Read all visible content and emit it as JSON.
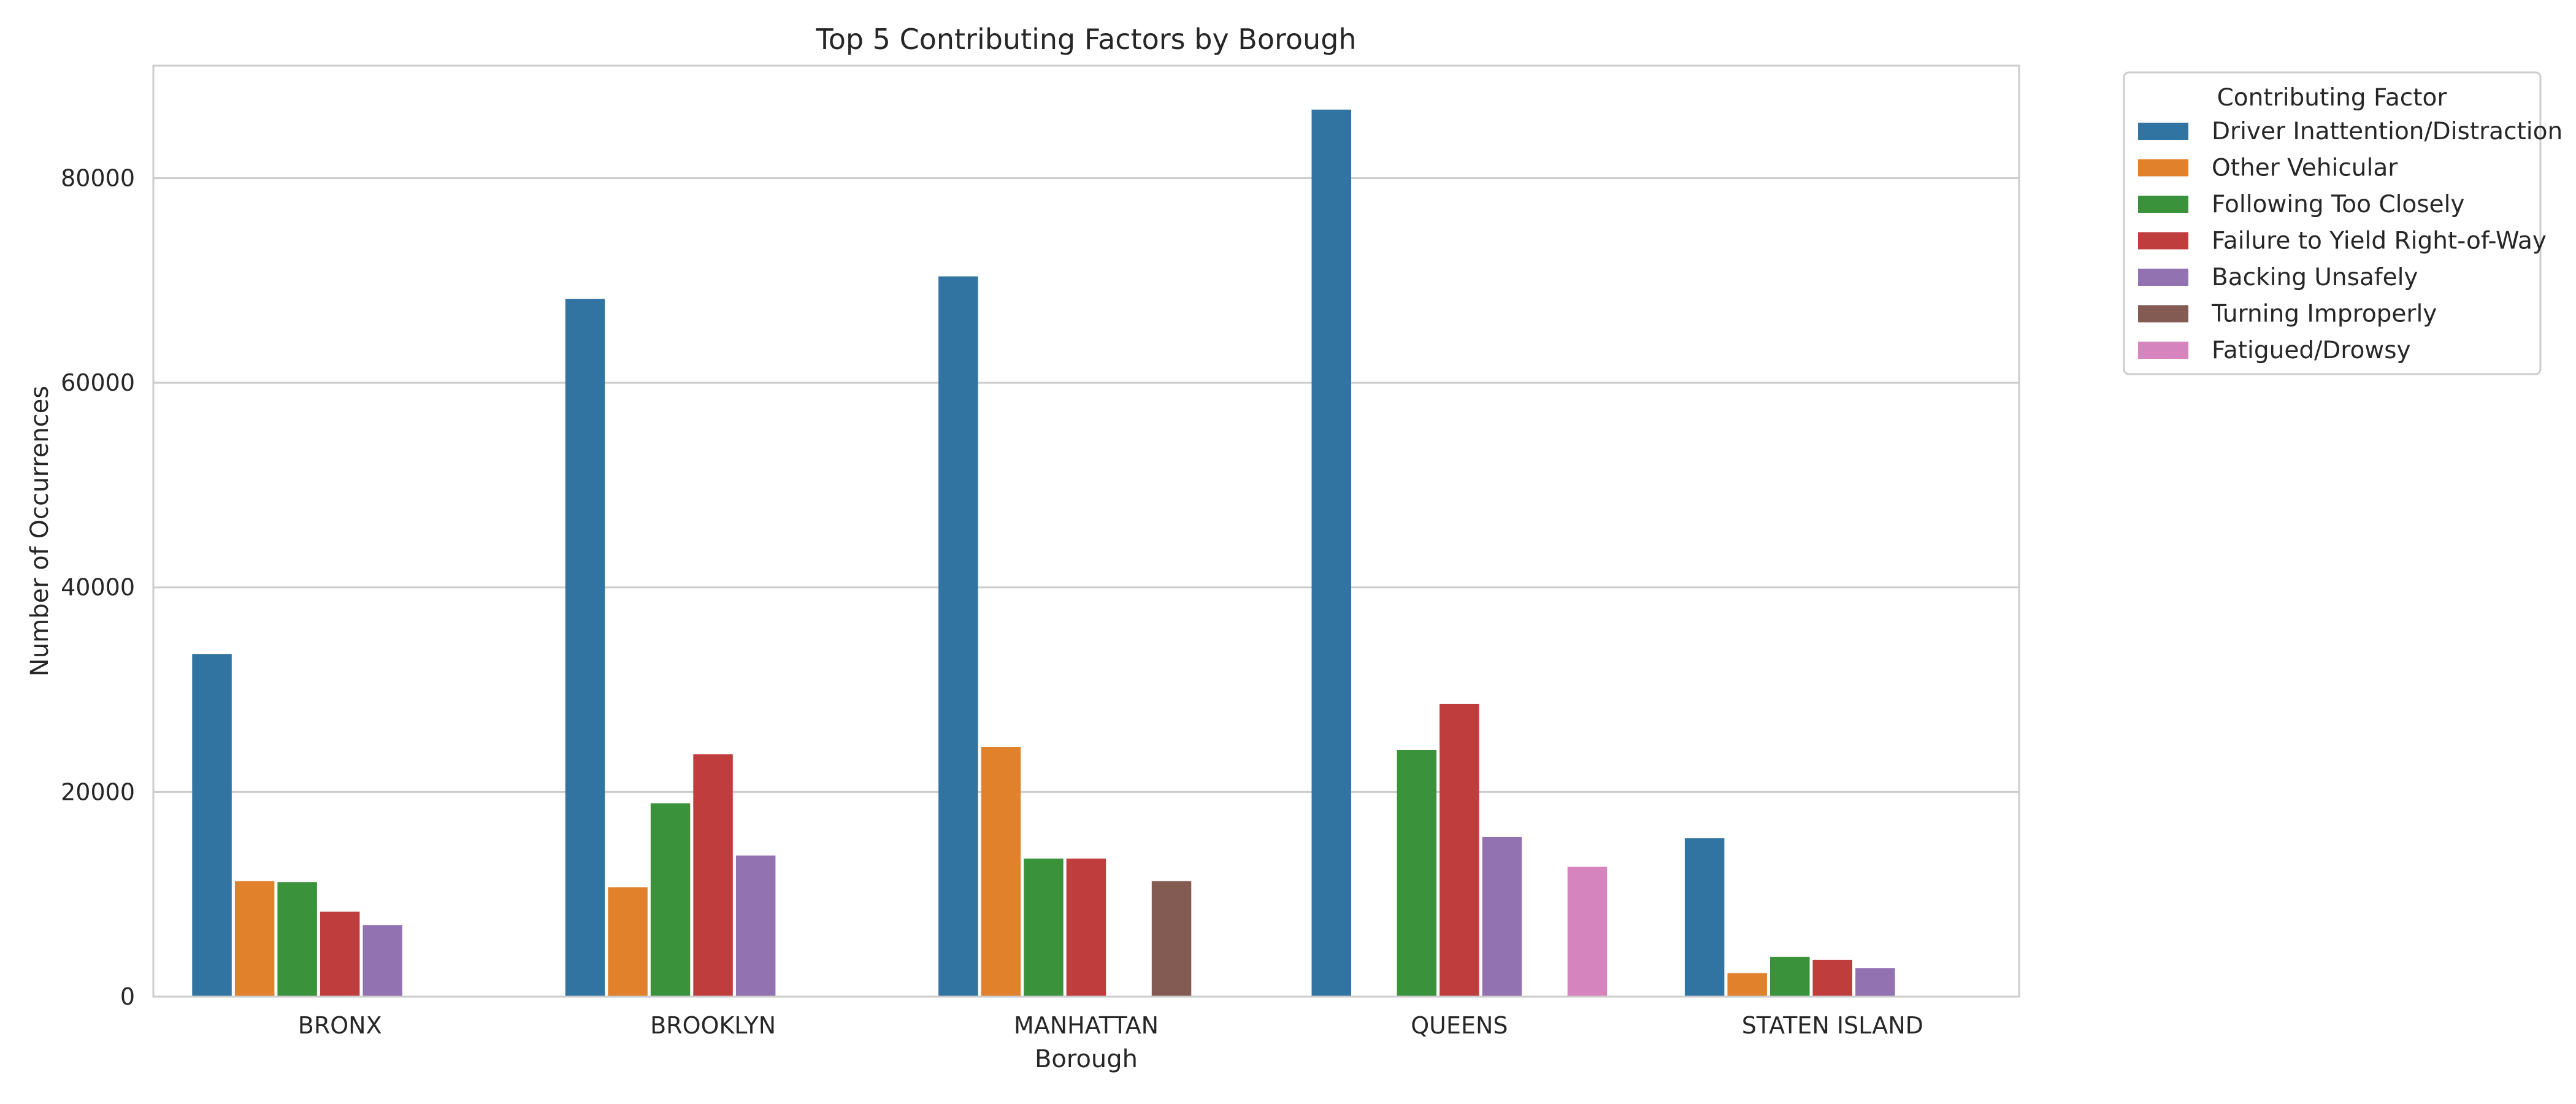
{
  "chart_data": {
    "type": "bar",
    "title": "Top 5 Contributing Factors by Borough",
    "xlabel": "Borough",
    "ylabel": "Number of Occurrences",
    "categories": [
      "BRONX",
      "BROOKLYN",
      "MANHATTAN",
      "QUEENS",
      "STATEN ISLAND"
    ],
    "ylim": [
      0,
      91000
    ],
    "yticks": [
      0,
      20000,
      40000,
      60000,
      80000
    ],
    "grid": true,
    "legend": {
      "title": "Contributing Factor",
      "placement": "outside-top-right"
    },
    "series": [
      {
        "name": "Driver Inattention/Distraction",
        "color": "#3274a1",
        "values": [
          33500,
          68200,
          70400,
          86700,
          15500
        ]
      },
      {
        "name": "Other Vehicular",
        "color": "#e1812c",
        "values": [
          11300,
          10700,
          24400,
          null,
          2300
        ]
      },
      {
        "name": "Following Too Closely",
        "color": "#3a923a",
        "values": [
          11200,
          18900,
          13500,
          24100,
          3900
        ]
      },
      {
        "name": "Failure to Yield Right-of-Way",
        "color": "#c03d3e",
        "values": [
          8300,
          23700,
          13500,
          28600,
          3600
        ]
      },
      {
        "name": "Backing Unsafely",
        "color": "#9372b2",
        "values": [
          7000,
          13800,
          null,
          15600,
          2800
        ]
      },
      {
        "name": "Turning Improperly",
        "color": "#845b53",
        "values": [
          null,
          null,
          11300,
          null,
          null
        ]
      },
      {
        "name": "Fatigued/Drowsy",
        "color": "#d684bd",
        "values": [
          null,
          null,
          null,
          12700,
          null
        ]
      }
    ]
  }
}
